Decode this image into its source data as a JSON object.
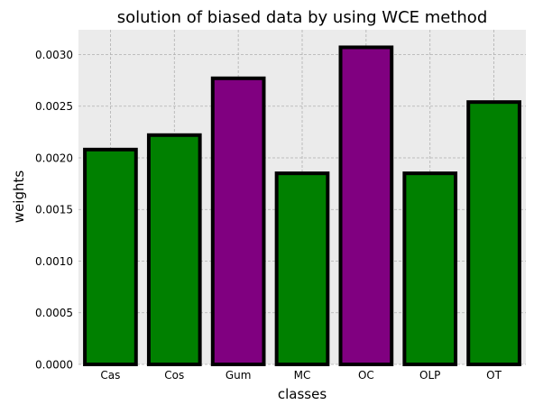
{
  "chart_data": {
    "type": "bar",
    "title": "solution of biased data by using WCE method",
    "xlabel": "classes",
    "ylabel": "weights",
    "categories": [
      "Cas",
      "Cos",
      "Gum",
      "MC",
      "OC",
      "OLP",
      "OT"
    ],
    "values": [
      0.00208,
      0.00222,
      0.00277,
      0.00185,
      0.00307,
      0.00185,
      0.00254
    ],
    "bar_colors": [
      "#008000",
      "#008000",
      "#800080",
      "#008000",
      "#800080",
      "#008000",
      "#008000"
    ],
    "edge_color": "#000000",
    "ylim": [
      0,
      0.00324
    ],
    "yticks": [
      "0.0000",
      "0.0005",
      "0.0010",
      "0.0015",
      "0.0020",
      "0.0025",
      "0.0030"
    ],
    "ytick_values": [
      0,
      0.0005,
      0.001,
      0.0015,
      0.002,
      0.0025,
      0.003
    ],
    "grid": true,
    "style": {
      "plot_background": "#ebebeb",
      "grid_color": "#b0b0b0"
    }
  }
}
